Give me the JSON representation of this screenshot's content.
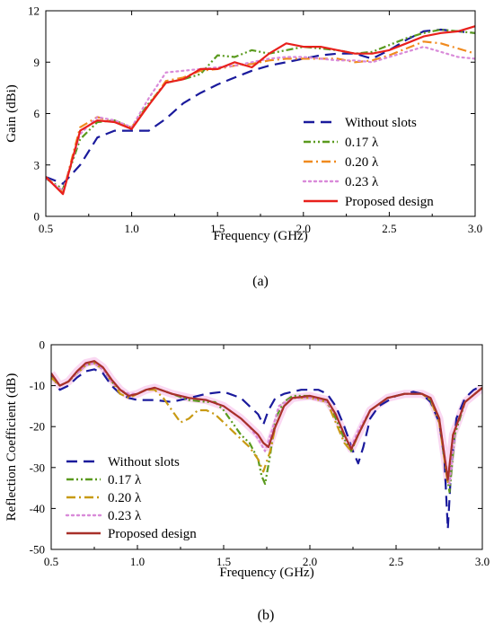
{
  "colors": {
    "without_slots": "#1a1a9c",
    "s017": "#5a9a1e",
    "s020": "#f08a1e",
    "s023": "#d98ad9",
    "proposed_a": "#e8201c",
    "s020_b": "#c89a14",
    "proposed_b": "#a8302a",
    "band_b": "#f8c8ec"
  },
  "chart_data": [
    {
      "type": "line",
      "caption": "(a)",
      "xlabel": "Frequency (GHz)",
      "ylabel": "Gain (dBi)",
      "xlim": [
        0.5,
        3.0
      ],
      "ylim": [
        0,
        12
      ],
      "xticks": [
        "0.5",
        "1.0",
        "1.5",
        "2.0",
        "2.5",
        "3.0"
      ],
      "yticks": [
        "0",
        "3",
        "6",
        "9",
        "12"
      ],
      "legend_position": "bottom-right",
      "series": [
        {
          "name": "Without slots",
          "color_key": "without_slots",
          "dash": "dash",
          "x": [
            0.5,
            0.6,
            0.7,
            0.8,
            0.9,
            1.0,
            1.1,
            1.2,
            1.3,
            1.4,
            1.5,
            1.6,
            1.7,
            1.8,
            1.9,
            2.0,
            2.1,
            2.2,
            2.3,
            2.4,
            2.5,
            2.6,
            2.7,
            2.8,
            2.9,
            3.0
          ],
          "y": [
            2.3,
            1.9,
            3.0,
            4.6,
            5.0,
            5.0,
            5.0,
            5.7,
            6.6,
            7.2,
            7.7,
            8.1,
            8.5,
            8.8,
            9.0,
            9.2,
            9.4,
            9.5,
            9.5,
            9.2,
            9.7,
            10.3,
            10.8,
            10.9,
            10.8,
            10.7
          ]
        },
        {
          "name": "0.17 λ",
          "color_key": "s017",
          "dash": "dashdotdot",
          "x": [
            0.5,
            0.6,
            0.7,
            0.8,
            0.9,
            1.0,
            1.1,
            1.2,
            1.3,
            1.4,
            1.5,
            1.6,
            1.7,
            1.8,
            1.9,
            2.0,
            2.1,
            2.2,
            2.3,
            2.4,
            2.5,
            2.6,
            2.7,
            2.8,
            2.9,
            3.0
          ],
          "y": [
            2.2,
            1.6,
            4.5,
            5.5,
            5.6,
            5.2,
            6.6,
            7.8,
            8.0,
            8.3,
            9.4,
            9.3,
            9.7,
            9.5,
            9.7,
            9.9,
            9.8,
            9.7,
            9.5,
            9.6,
            10.0,
            10.4,
            10.7,
            10.9,
            10.8,
            10.7
          ]
        },
        {
          "name": "0.20 λ",
          "color_key": "s020",
          "dash": "dashdot",
          "x": [
            0.5,
            0.6,
            0.7,
            0.8,
            0.9,
            1.0,
            1.1,
            1.2,
            1.3,
            1.4,
            1.5,
            1.6,
            1.7,
            1.8,
            1.9,
            2.0,
            2.1,
            2.2,
            2.3,
            2.4,
            2.5,
            2.6,
            2.7,
            2.8,
            2.9,
            3.0
          ],
          "y": [
            2.3,
            1.4,
            5.2,
            5.8,
            5.5,
            5.2,
            6.5,
            7.9,
            8.1,
            8.5,
            8.6,
            8.8,
            8.9,
            9.1,
            9.2,
            9.2,
            9.2,
            9.2,
            9.0,
            9.1,
            9.4,
            9.8,
            10.2,
            10.1,
            9.8,
            9.5
          ]
        },
        {
          "name": "0.23 λ",
          "color_key": "s023",
          "dash": "dot",
          "x": [
            0.5,
            0.6,
            0.7,
            0.8,
            0.9,
            1.0,
            1.1,
            1.2,
            1.3,
            1.4,
            1.5,
            1.6,
            1.7,
            1.8,
            1.9,
            2.0,
            2.1,
            2.2,
            2.3,
            2.4,
            2.5,
            2.6,
            2.7,
            2.8,
            2.9,
            3.0
          ],
          "y": [
            2.2,
            1.5,
            4.8,
            5.8,
            5.6,
            5.2,
            6.9,
            8.4,
            8.5,
            8.6,
            8.7,
            8.8,
            9.0,
            9.2,
            9.3,
            9.3,
            9.2,
            9.1,
            9.1,
            9.0,
            9.3,
            9.6,
            9.9,
            9.6,
            9.3,
            9.2
          ]
        },
        {
          "name": "Proposed design",
          "color_key": "proposed_a",
          "dash": "solid",
          "x": [
            0.5,
            0.6,
            0.7,
            0.8,
            0.9,
            1.0,
            1.1,
            1.2,
            1.3,
            1.4,
            1.5,
            1.6,
            1.7,
            1.8,
            1.9,
            2.0,
            2.1,
            2.2,
            2.3,
            2.4,
            2.5,
            2.6,
            2.7,
            2.8,
            2.9,
            3.0
          ],
          "y": [
            2.3,
            1.3,
            5.0,
            5.6,
            5.5,
            5.1,
            6.5,
            7.8,
            8.0,
            8.6,
            8.6,
            9.0,
            8.7,
            9.5,
            10.1,
            9.9,
            9.9,
            9.7,
            9.5,
            9.5,
            9.7,
            10.1,
            10.5,
            10.7,
            10.8,
            11.1
          ]
        }
      ]
    },
    {
      "type": "line",
      "caption": "(b)",
      "xlabel": "Frequency (GHz)",
      "ylabel": "Reflection Coefficient (dB)",
      "xlim": [
        0.5,
        3.0
      ],
      "ylim": [
        -50,
        0
      ],
      "xticks": [
        "0.5",
        "1.0",
        "1.5",
        "2.0",
        "2.5",
        "3.0"
      ],
      "yticks": [
        "0",
        "-10",
        "-20",
        "-30",
        "-40",
        "-50"
      ],
      "legend_position": "bottom-left",
      "series": [
        {
          "name": "Without slots",
          "color_key": "without_slots",
          "dash": "dash",
          "x": [
            0.5,
            0.55,
            0.6,
            0.65,
            0.7,
            0.75,
            0.8,
            0.85,
            0.9,
            0.95,
            1.0,
            1.05,
            1.1,
            1.2,
            1.3,
            1.4,
            1.5,
            1.6,
            1.65,
            1.7,
            1.73,
            1.76,
            1.8,
            1.85,
            1.9,
            1.95,
            2.0,
            2.05,
            2.1,
            2.15,
            2.2,
            2.25,
            2.28,
            2.31,
            2.35,
            2.4,
            2.5,
            2.6,
            2.65,
            2.7,
            2.75,
            2.78,
            2.8,
            2.82,
            2.85,
            2.9,
            2.95,
            3.0
          ],
          "y": [
            -7,
            -11,
            -10,
            -8,
            -6.5,
            -6,
            -7,
            -10,
            -12,
            -13,
            -13.5,
            -13.5,
            -13.5,
            -14,
            -13,
            -12,
            -11.5,
            -13,
            -15,
            -17,
            -19.5,
            -16,
            -13,
            -12,
            -11.5,
            -11,
            -11,
            -11,
            -12,
            -15,
            -20,
            -26,
            -29,
            -25,
            -18,
            -15,
            -12.5,
            -11.5,
            -12,
            -14,
            -19,
            -28,
            -45,
            -30,
            -18,
            -13,
            -11,
            -10
          ]
        },
        {
          "name": "0.17 λ",
          "color_key": "s017",
          "dash": "dashdotdot",
          "x": [
            0.5,
            0.55,
            0.6,
            0.65,
            0.7,
            0.75,
            0.8,
            0.85,
            0.9,
            0.95,
            1.0,
            1.05,
            1.1,
            1.2,
            1.3,
            1.4,
            1.45,
            1.5,
            1.55,
            1.6,
            1.65,
            1.7,
            1.72,
            1.74,
            1.77,
            1.8,
            1.85,
            1.9,
            2.0,
            2.1,
            2.15,
            2.2,
            2.24,
            2.28,
            2.35,
            2.45,
            2.55,
            2.65,
            2.7,
            2.75,
            2.78,
            2.81,
            2.84,
            2.9,
            3.0
          ],
          "y": [
            -8,
            -10,
            -9,
            -7,
            -5,
            -4.5,
            -6,
            -9,
            -11,
            -12.5,
            -12,
            -11,
            -10.5,
            -12,
            -13.5,
            -14,
            -14,
            -16,
            -19,
            -22,
            -24,
            -28,
            -32,
            -34,
            -27,
            -18,
            -14,
            -12.5,
            -12.5,
            -14,
            -18,
            -23,
            -26,
            -22,
            -16,
            -13,
            -12,
            -12,
            -13.5,
            -18,
            -28,
            -36,
            -22,
            -14,
            -10.5
          ]
        },
        {
          "name": "0.20 λ",
          "color_key": "s020_b",
          "dash": "dashdot",
          "x": [
            0.5,
            0.55,
            0.6,
            0.65,
            0.7,
            0.75,
            0.8,
            0.85,
            0.9,
            0.95,
            1.0,
            1.05,
            1.1,
            1.15,
            1.2,
            1.25,
            1.3,
            1.35,
            1.4,
            1.45,
            1.5,
            1.55,
            1.6,
            1.65,
            1.7,
            1.73,
            1.77,
            1.8,
            1.85,
            1.9,
            2.0,
            2.1,
            2.15,
            2.2,
            2.24,
            2.28,
            2.35,
            2.45,
            2.55,
            2.65,
            2.7,
            2.75,
            2.78,
            2.8,
            2.83,
            2.9,
            3.0
          ],
          "y": [
            -8,
            -10,
            -9,
            -7,
            -5,
            -4.5,
            -6,
            -9,
            -12,
            -13,
            -12,
            -11,
            -11,
            -13,
            -16,
            -19,
            -18,
            -16,
            -16,
            -17,
            -19,
            -21,
            -23,
            -25,
            -28,
            -31,
            -26,
            -20,
            -15,
            -13,
            -13,
            -14,
            -19,
            -24,
            -26,
            -22,
            -16,
            -13,
            -12,
            -12,
            -13.5,
            -19,
            -28,
            -34,
            -22,
            -14,
            -10.5
          ]
        },
        {
          "name": "0.23 λ",
          "color_key": "s023",
          "dash": "dot",
          "x": [
            0.5,
            0.55,
            0.6,
            0.65,
            0.7,
            0.75,
            0.8,
            0.85,
            0.9,
            0.95,
            1.0,
            1.05,
            1.1,
            1.2,
            1.3,
            1.4,
            1.5,
            1.6,
            1.65,
            1.7,
            1.74,
            1.78,
            1.82,
            1.9,
            2.0,
            2.1,
            2.15,
            2.2,
            2.24,
            2.28,
            2.35,
            2.45,
            2.55,
            2.65,
            2.7,
            2.75,
            2.78,
            2.81,
            2.84,
            2.9,
            3.0
          ],
          "y": [
            -7,
            -10,
            -9,
            -7,
            -5,
            -4.5,
            -6,
            -9,
            -11,
            -12,
            -12,
            -11,
            -10.5,
            -12,
            -13,
            -13.5,
            -15,
            -18,
            -20,
            -23,
            -26,
            -21,
            -15,
            -13,
            -13,
            -14,
            -17,
            -22,
            -25,
            -21,
            -16,
            -13,
            -12,
            -12,
            -13,
            -18,
            -27,
            -34,
            -21,
            -14,
            -10.5
          ]
        },
        {
          "name": "Proposed design",
          "color_key": "proposed_b",
          "dash": "solid",
          "x": [
            0.5,
            0.55,
            0.6,
            0.65,
            0.7,
            0.75,
            0.8,
            0.85,
            0.9,
            0.95,
            1.0,
            1.05,
            1.1,
            1.2,
            1.3,
            1.4,
            1.5,
            1.6,
            1.65,
            1.7,
            1.73,
            1.76,
            1.8,
            1.85,
            1.9,
            2.0,
            2.1,
            2.15,
            2.2,
            2.24,
            2.28,
            2.35,
            2.45,
            2.55,
            2.65,
            2.7,
            2.75,
            2.78,
            2.8,
            2.83,
            2.9,
            3.0
          ],
          "y": [
            -7,
            -10,
            -9,
            -6.5,
            -4.5,
            -4,
            -5.5,
            -8.5,
            -11,
            -12.5,
            -12,
            -11,
            -10.5,
            -12,
            -13,
            -13.5,
            -15,
            -18,
            -20,
            -22,
            -24,
            -25,
            -20,
            -15,
            -13,
            -12.5,
            -13.5,
            -17,
            -22,
            -25.5,
            -22,
            -16,
            -13,
            -12,
            -12,
            -13,
            -18,
            -27,
            -33,
            -22,
            -14,
            -10.5
          ]
        }
      ]
    }
  ]
}
